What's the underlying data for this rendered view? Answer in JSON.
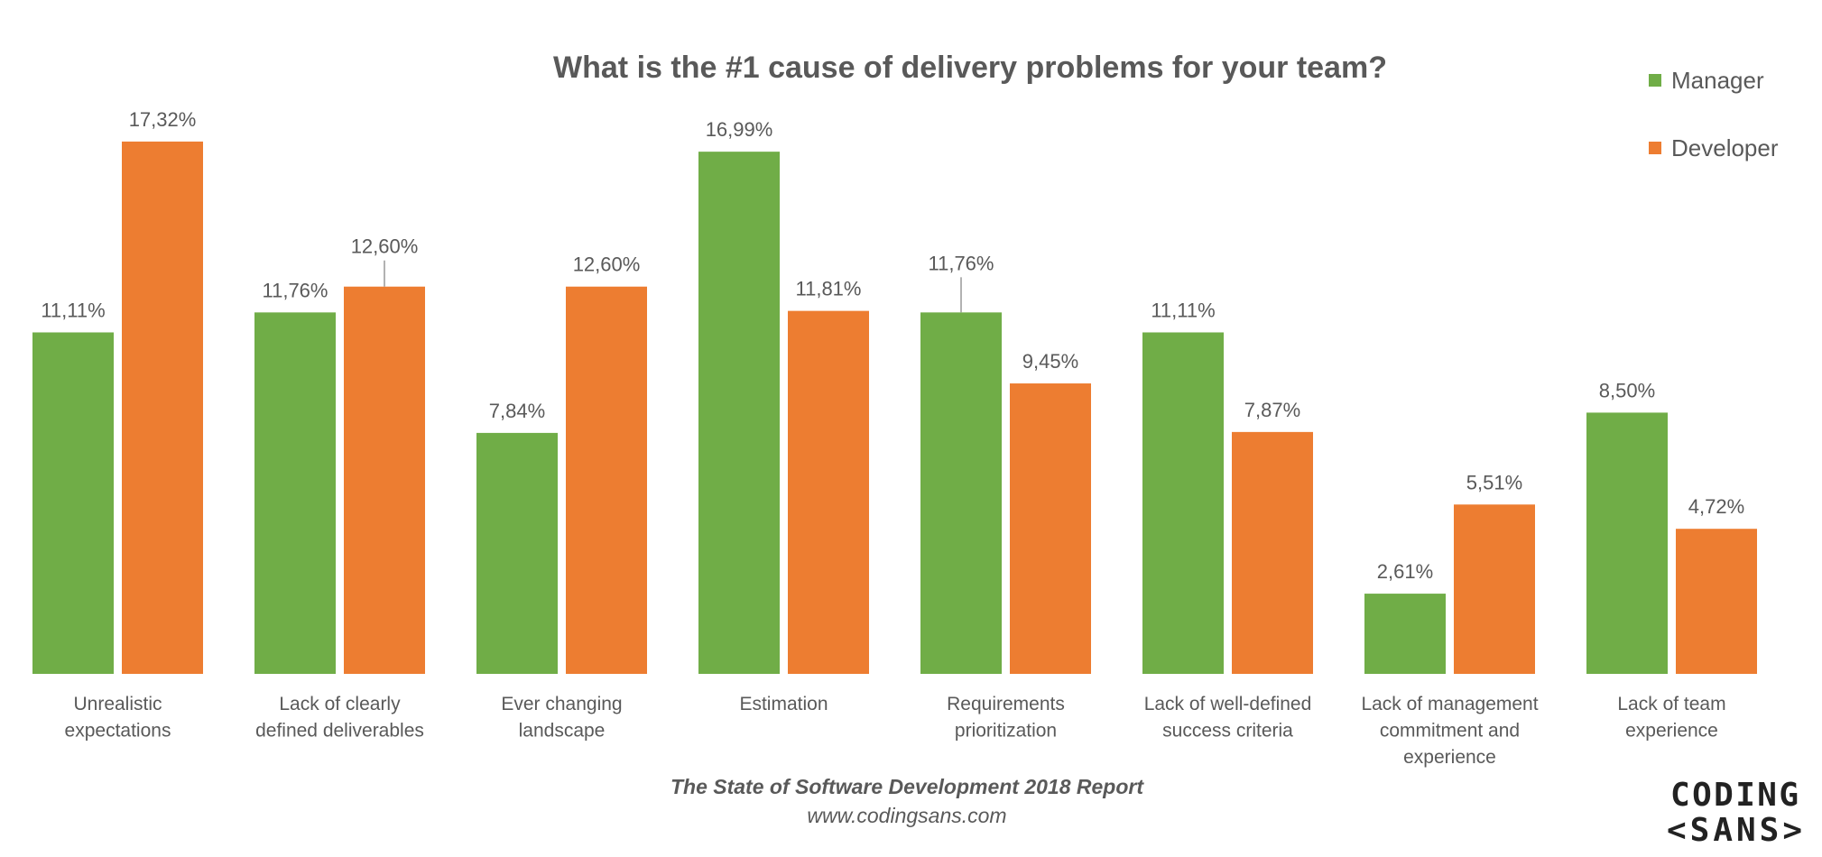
{
  "chart_data": {
    "type": "bar",
    "title": "What is the #1 cause of delivery problems for your team?",
    "categories": [
      [
        "Unrealistic",
        "expectations"
      ],
      [
        "Lack of clearly",
        "defined deliverables"
      ],
      [
        "Ever changing",
        "landscape"
      ],
      [
        "Estimation"
      ],
      [
        "Requirements",
        "prioritization"
      ],
      [
        "Lack of well-defined",
        "success criteria"
      ],
      [
        "Lack of management",
        "commitment and",
        "experience"
      ],
      [
        "Lack of team",
        "experience"
      ]
    ],
    "series": [
      {
        "name": "Manager",
        "color": "#70AD47",
        "values": [
          11.11,
          11.76,
          7.84,
          16.99,
          11.76,
          11.11,
          2.61,
          8.5
        ],
        "labels": [
          "11,11%",
          "11,76%",
          "7,84%",
          "16,99%",
          "11,76%",
          "11,11%",
          "2,61%",
          "8,50%"
        ]
      },
      {
        "name": "Developer",
        "color": "#ED7D31",
        "values": [
          17.32,
          12.6,
          12.6,
          11.81,
          9.45,
          7.87,
          5.51,
          4.72
        ],
        "labels": [
          "17,32%",
          "12,60%",
          "12,60%",
          "11,81%",
          "9,45%",
          "7,87%",
          "5,51%",
          "4,72%"
        ]
      }
    ],
    "ylim": [
      0,
      18
    ],
    "grid": false,
    "legend": "top-right"
  },
  "footer": {
    "source": "The State of Software Development 2018 Report",
    "url": "www.codingsans.com"
  },
  "logo": {
    "line1": "CODING",
    "line2": "<SANS>",
    "accent": "#1A9FC9"
  }
}
